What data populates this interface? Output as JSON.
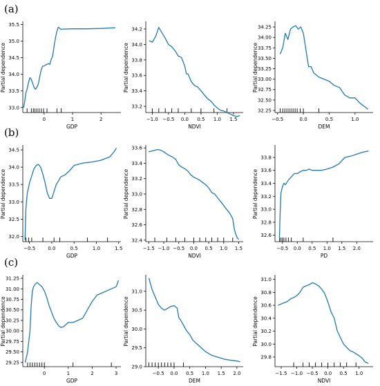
{
  "figure": {
    "rows": [
      {
        "label": "(a)"
      },
      {
        "label": "(b)"
      },
      {
        "label": "(c)"
      }
    ],
    "line_color": "#1f77b4"
  },
  "chart_data": [
    {
      "type": "line",
      "row": 0,
      "col": 0,
      "xlabel": "GDP",
      "ylabel": "Partial dependence",
      "xlim": [
        -0.75,
        2.7
      ],
      "ylim": [
        32.85,
        35.55
      ],
      "xticks": [
        0,
        1,
        2
      ],
      "xtick_labels": [
        "0",
        "1",
        "2"
      ],
      "yticks": [
        33.0,
        33.5,
        34.0,
        34.5,
        35.0,
        35.5
      ],
      "ytick_labels": [
        "33.0",
        "33.5",
        "34.0",
        "34.5",
        "35.0",
        "35.5"
      ],
      "rug": [
        -0.6,
        -0.45,
        -0.38,
        -0.32,
        -0.25,
        -0.18,
        -0.1,
        -0.02,
        0.1,
        0.45,
        0.6
      ],
      "x": [
        -0.72,
        -0.68,
        -0.64,
        -0.6,
        -0.55,
        -0.5,
        -0.45,
        -0.4,
        -0.35,
        -0.3,
        -0.25,
        -0.2,
        -0.15,
        -0.1,
        -0.05,
        0.0,
        0.05,
        0.1,
        0.15,
        0.2,
        0.25,
        0.3,
        0.35,
        0.4,
        0.45,
        0.5,
        0.55,
        0.6,
        0.65,
        0.7,
        1.0,
        1.5,
        2.0,
        2.5
      ],
      "y": [
        33.0,
        33.2,
        33.45,
        33.55,
        33.75,
        33.9,
        33.85,
        33.72,
        33.6,
        33.55,
        33.62,
        33.72,
        33.95,
        34.15,
        34.25,
        34.25,
        34.28,
        34.3,
        34.32,
        34.3,
        34.45,
        34.55,
        34.85,
        35.1,
        35.3,
        35.42,
        35.38,
        35.35,
        35.36,
        35.36,
        35.37,
        35.37,
        35.38,
        35.4
      ]
    },
    {
      "type": "line",
      "row": 0,
      "col": 1,
      "xlabel": "NDVI",
      "ylabel": "Partial dependence",
      "xlim": [
        -1.2,
        1.8
      ],
      "ylim": [
        33.12,
        34.28
      ],
      "xticks": [
        -1.0,
        -0.5,
        0.0,
        0.5,
        1.0,
        1.5
      ],
      "xtick_labels": [
        "−1.0",
        "−0.5",
        "0.0",
        "0.5",
        "1.0",
        "1.5"
      ],
      "yticks": [
        33.2,
        33.4,
        33.6,
        33.8,
        34.0,
        34.2
      ],
      "ytick_labels": [
        "33.2",
        "33.4",
        "33.6",
        "33.8",
        "34.0",
        "34.2"
      ],
      "rug": [
        -1.0,
        -0.8,
        -0.6,
        -0.4,
        -0.2,
        0.2,
        0.5,
        0.9,
        1.3
      ],
      "x": [
        -1.1,
        -1.0,
        -0.9,
        -0.8,
        -0.7,
        -0.6,
        -0.5,
        -0.4,
        -0.3,
        -0.2,
        -0.1,
        0.0,
        0.05,
        0.1,
        0.2,
        0.3,
        0.4,
        0.5,
        0.6,
        0.7,
        0.8,
        0.9,
        1.0,
        1.1,
        1.2,
        1.3,
        1.4,
        1.5,
        1.6,
        1.7
      ],
      "y": [
        34.05,
        34.03,
        34.1,
        34.22,
        34.15,
        34.08,
        34.0,
        33.97,
        33.92,
        33.85,
        33.83,
        33.72,
        33.62,
        33.62,
        33.52,
        33.47,
        33.45,
        33.4,
        33.35,
        33.3,
        33.27,
        33.22,
        33.18,
        33.15,
        33.14,
        33.12,
        33.1,
        33.08,
        33.07,
        33.08
      ]
    },
    {
      "type": "line",
      "row": 0,
      "col": 2,
      "xlabel": "DEM",
      "ylabel": "Partial dependence",
      "xlim": [
        -0.55,
        1.35
      ],
      "ylim": [
        32.2,
        34.35
      ],
      "xticks": [
        -0.5,
        0.0,
        0.5,
        1.0
      ],
      "xtick_labels": [
        "−0.5",
        "0.0",
        "0.5",
        "1.0"
      ],
      "yticks": [
        32.25,
        32.5,
        32.75,
        33.0,
        33.25,
        33.5,
        33.75,
        34.0,
        34.25
      ],
      "ytick_labels": [
        "32.25",
        "32.50",
        "32.75",
        "33.00",
        "33.25",
        "33.50",
        "33.75",
        "34.00",
        "34.25"
      ],
      "rug": [
        -0.45,
        -0.4,
        -0.36,
        -0.32,
        -0.28,
        -0.24,
        -0.2,
        -0.16,
        -0.12,
        -0.06,
        0.0,
        0.3
      ],
      "x": [
        -0.45,
        -0.4,
        -0.35,
        -0.3,
        -0.25,
        -0.2,
        -0.15,
        -0.1,
        -0.05,
        0.0,
        0.05,
        0.1,
        0.15,
        0.2,
        0.3,
        0.4,
        0.5,
        0.6,
        0.7,
        0.8,
        0.9,
        1.0,
        1.1,
        1.2,
        1.25
      ],
      "y": [
        33.6,
        33.75,
        34.1,
        33.95,
        34.2,
        34.25,
        34.28,
        34.2,
        34.25,
        34.1,
        33.7,
        33.3,
        33.3,
        33.15,
        33.05,
        33.0,
        32.95,
        32.85,
        32.8,
        32.62,
        32.55,
        32.55,
        32.42,
        32.33,
        32.28
      ]
    },
    {
      "type": "line",
      "row": 1,
      "col": 0,
      "xlabel": "GDP",
      "ylabel": "Partial dependence",
      "xlim": [
        -0.65,
        1.55
      ],
      "ylim": [
        31.85,
        34.6
      ],
      "xticks": [
        -0.5,
        0.0,
        0.5,
        1.0,
        1.5
      ],
      "xtick_labels": [
        "−0.5",
        "0.0",
        "0.5",
        "1.0",
        "1.5"
      ],
      "yticks": [
        32.0,
        32.5,
        33.0,
        33.5,
        34.0,
        34.5
      ],
      "ytick_labels": [
        "32.0",
        "32.5",
        "33.0",
        "33.5",
        "34.0",
        "34.5"
      ],
      "rug": [
        -0.58,
        -0.52,
        -0.45,
        -0.2,
        0.05,
        0.18,
        0.8,
        1.25
      ],
      "x": [
        -0.6,
        -0.58,
        -0.55,
        -0.5,
        -0.45,
        -0.4,
        -0.35,
        -0.3,
        -0.25,
        -0.2,
        -0.15,
        -0.1,
        -0.05,
        0.0,
        0.05,
        0.1,
        0.15,
        0.2,
        0.3,
        0.4,
        0.5,
        0.7,
        0.9,
        1.1,
        1.3,
        1.4,
        1.45
      ],
      "y": [
        31.9,
        32.8,
        33.25,
        33.55,
        33.75,
        33.95,
        34.05,
        34.08,
        34.0,
        33.8,
        33.55,
        33.25,
        33.1,
        33.1,
        33.3,
        33.5,
        33.6,
        33.72,
        33.78,
        33.9,
        34.05,
        34.12,
        34.15,
        34.2,
        34.3,
        34.45,
        34.55
      ]
    },
    {
      "type": "line",
      "row": 1,
      "col": 1,
      "xlabel": "NDVI",
      "ylabel": "Partial dependence",
      "xlim": [
        -1.6,
        1.65
      ],
      "ylim": [
        32.38,
        33.62
      ],
      "xticks": [
        -1.5,
        -1.0,
        -0.5,
        0.0,
        0.5,
        1.0,
        1.5
      ],
      "xtick_labels": [
        "−1.5",
        "−1.0",
        "−0.5",
        "0.0",
        "0.5",
        "1.0",
        "1.5"
      ],
      "yticks": [
        32.4,
        32.6,
        32.8,
        33.0,
        33.2,
        33.4,
        33.6
      ],
      "ytick_labels": [
        "32.4",
        "32.6",
        "32.8",
        "33.0",
        "33.2",
        "33.4",
        "33.6"
      ],
      "rug": [
        -1.3,
        -0.9,
        -0.6,
        -0.3,
        0.0,
        0.2,
        0.4,
        0.6,
        0.8,
        1.0,
        1.3
      ],
      "x": [
        -1.5,
        -1.4,
        -1.3,
        -1.2,
        -1.1,
        -1.0,
        -0.9,
        -0.8,
        -0.7,
        -0.6,
        -0.5,
        -0.4,
        -0.3,
        -0.2,
        -0.1,
        0.0,
        0.1,
        0.2,
        0.3,
        0.4,
        0.5,
        0.6,
        0.7,
        0.8,
        0.9,
        1.0,
        1.1,
        1.2,
        1.3,
        1.35,
        1.4,
        1.45,
        1.5
      ],
      "y": [
        33.55,
        33.56,
        33.57,
        33.58,
        33.57,
        33.55,
        33.52,
        33.5,
        33.48,
        33.45,
        33.38,
        33.35,
        33.33,
        33.3,
        33.25,
        33.22,
        33.2,
        33.18,
        33.15,
        33.12,
        33.08,
        33.02,
        33.0,
        32.95,
        32.9,
        32.85,
        32.8,
        32.75,
        32.68,
        32.55,
        32.48,
        32.43,
        32.41
      ]
    },
    {
      "type": "line",
      "row": 1,
      "col": 2,
      "xlabel": "PD",
      "ylabel": "Partial dependence",
      "xlim": [
        -0.75,
        2.55
      ],
      "ylim": [
        32.5,
        33.97
      ],
      "xticks": [
        -0.5,
        0.0,
        0.5,
        1.0,
        1.5,
        2.0
      ],
      "xtick_labels": [
        "−0.5",
        "0.0",
        "0.5",
        "1.0",
        "1.5",
        "2.0"
      ],
      "yticks": [
        32.6,
        32.8,
        33.0,
        33.2,
        33.4,
        33.6,
        33.8
      ],
      "ytick_labels": [
        "32.6",
        "32.8",
        "33.0",
        "33.2",
        "33.4",
        "33.6",
        "33.8"
      ],
      "rug": [
        -0.6,
        -0.55,
        -0.5,
        -0.45,
        -0.38,
        -0.3,
        -0.2,
        0.2,
        1.2
      ],
      "x": [
        -0.6,
        -0.58,
        -0.55,
        -0.5,
        -0.45,
        -0.4,
        -0.3,
        -0.2,
        -0.1,
        0.0,
        0.1,
        0.2,
        0.3,
        0.4,
        0.5,
        0.6,
        0.8,
        1.0,
        1.2,
        1.4,
        1.6,
        1.8,
        2.0,
        2.2,
        2.4
      ],
      "y": [
        32.55,
        32.9,
        33.25,
        33.35,
        33.4,
        33.38,
        33.45,
        33.5,
        33.55,
        33.55,
        33.58,
        33.6,
        33.6,
        33.62,
        33.6,
        33.6,
        33.6,
        33.62,
        33.65,
        33.7,
        33.8,
        33.82,
        33.85,
        33.88,
        33.9
      ]
    },
    {
      "type": "line",
      "row": 2,
      "col": 0,
      "xlabel": "GDP",
      "ylabel": "Partial dependence",
      "xlim": [
        -0.9,
        3.2
      ],
      "ylim": [
        29.15,
        31.3
      ],
      "xticks": [
        0,
        1,
        2,
        3
      ],
      "xtick_labels": [
        "0",
        "1",
        "2",
        "3"
      ],
      "yticks": [
        29.25,
        29.5,
        29.75,
        30.0,
        30.25,
        30.5,
        30.75,
        31.0,
        31.25
      ],
      "ytick_labels": [
        "29.25",
        "29.50",
        "29.75",
        "30.00",
        "30.25",
        "30.50",
        "30.75",
        "31.00",
        "31.25"
      ],
      "rug": [
        -0.7,
        -0.6,
        -0.5,
        -0.4,
        -0.3,
        -0.2,
        -0.1,
        0.0,
        1.2,
        2.8
      ],
      "x": [
        -0.8,
        -0.7,
        -0.6,
        -0.55,
        -0.5,
        -0.45,
        -0.4,
        -0.3,
        -0.2,
        -0.1,
        0.0,
        0.1,
        0.2,
        0.3,
        0.4,
        0.5,
        0.6,
        0.7,
        0.8,
        0.9,
        1.0,
        1.2,
        1.4,
        1.6,
        1.8,
        2.0,
        2.2,
        2.4,
        2.6,
        2.8,
        3.0,
        3.1
      ],
      "y": [
        29.25,
        29.5,
        30.0,
        30.6,
        30.95,
        31.05,
        31.1,
        31.15,
        31.1,
        31.05,
        30.95,
        30.8,
        30.6,
        30.45,
        30.3,
        30.2,
        30.12,
        30.08,
        30.1,
        30.15,
        30.2,
        30.2,
        30.25,
        30.3,
        30.5,
        30.7,
        30.85,
        30.9,
        30.95,
        31.0,
        31.05,
        31.2
      ]
    },
    {
      "type": "line",
      "row": 2,
      "col": 1,
      "xlabel": "DEM",
      "ylabel": "Partial dependence",
      "xlim": [
        -0.9,
        2.2
      ],
      "ylim": [
        29.0,
        31.4
      ],
      "xticks": [
        -0.5,
        0.0,
        0.5,
        1.0,
        1.5,
        2.0
      ],
      "xtick_labels": [
        "−0.5",
        "0.0",
        "0.5",
        "1.0",
        "1.5",
        "2.0"
      ],
      "yticks": [
        29.0,
        29.5,
        30.0,
        30.5,
        31.0
      ],
      "ytick_labels": [
        "29.0",
        "29.5",
        "30.0",
        "30.5",
        "31.0"
      ],
      "rug": [
        -0.8,
        -0.7,
        -0.6,
        -0.5,
        -0.4,
        -0.3,
        -0.2,
        -0.1,
        0.0,
        0.3
      ],
      "x": [
        -0.8,
        -0.75,
        -0.7,
        -0.6,
        -0.5,
        -0.4,
        -0.3,
        -0.2,
        -0.1,
        0.0,
        0.1,
        0.15,
        0.2,
        0.3,
        0.4,
        0.5,
        0.6,
        0.8,
        1.0,
        1.2,
        1.4,
        1.6,
        1.8,
        2.0,
        2.1
      ],
      "y": [
        31.35,
        31.2,
        31.05,
        30.85,
        30.65,
        30.55,
        30.5,
        30.55,
        30.6,
        30.62,
        30.55,
        30.3,
        30.25,
        30.1,
        29.95,
        29.85,
        29.7,
        29.55,
        29.4,
        29.3,
        29.25,
        29.2,
        29.17,
        29.15,
        29.13
      ]
    },
    {
      "type": "line",
      "row": 2,
      "col": 2,
      "xlabel": "NDVI",
      "ylabel": "Partial dependence",
      "xlim": [
        -1.7,
        1.45
      ],
      "ylim": [
        29.65,
        31.05
      ],
      "xticks": [
        -1.5,
        -1.0,
        -0.5,
        0.0,
        0.5,
        1.0
      ],
      "xtick_labels": [
        "−1.5",
        "−1.0",
        "−0.5",
        "0.0",
        "0.5",
        "1.0"
      ],
      "yticks": [
        29.8,
        30.0,
        30.2,
        30.4,
        30.6,
        30.8,
        31.0
      ],
      "ytick_labels": [
        "29.8",
        "30.0",
        "30.2",
        "30.4",
        "30.6",
        "30.8",
        "31.0"
      ],
      "rug": [
        -1.1,
        -0.8,
        -0.6,
        -0.4,
        -0.2,
        0.0,
        0.2,
        0.4,
        0.6,
        0.9
      ],
      "x": [
        -1.6,
        -1.5,
        -1.4,
        -1.3,
        -1.2,
        -1.1,
        -1.0,
        -0.9,
        -0.8,
        -0.7,
        -0.6,
        -0.5,
        -0.4,
        -0.3,
        -0.2,
        -0.1,
        0.0,
        0.1,
        0.2,
        0.3,
        0.4,
        0.5,
        0.6,
        0.7,
        0.8,
        0.9,
        1.0,
        1.1,
        1.2,
        1.3
      ],
      "y": [
        30.6,
        30.62,
        30.64,
        30.66,
        30.7,
        30.72,
        30.75,
        30.8,
        30.88,
        30.9,
        30.92,
        30.95,
        30.93,
        30.9,
        30.85,
        30.78,
        30.65,
        30.5,
        30.4,
        30.2,
        30.1,
        30.0,
        29.95,
        29.9,
        29.88,
        29.85,
        29.82,
        29.78,
        29.72,
        29.7
      ]
    }
  ]
}
